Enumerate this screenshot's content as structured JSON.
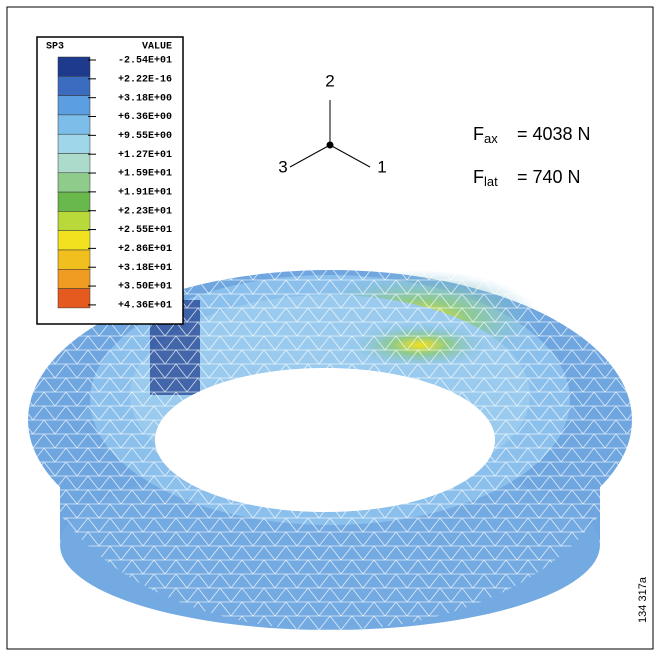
{
  "legend": {
    "header": "SP3",
    "value_header": "VALUE",
    "labels": [
      "-2.54E+01",
      "+2.22E-16",
      "+3.18E+00",
      "+6.36E+00",
      "+9.55E+00",
      "+1.27E+01",
      "+1.59E+01",
      "+1.91E+01",
      "+2.23E+01",
      "+2.55E+01",
      "+2.86E+01",
      "+3.18E+01",
      "+3.50E+01",
      "+4.36E+01"
    ],
    "colors": [
      "#1d3a8c",
      "#3b6cc0",
      "#5b9fe2",
      "#7cbde9",
      "#a0d6ea",
      "#acdacb",
      "#8fcb8a",
      "#69b84b",
      "#b9d93a",
      "#f2e11f",
      "#f2c01e",
      "#f09c22",
      "#e55a1e"
    ]
  },
  "triad": {
    "up": "2",
    "left": "3",
    "right": "1"
  },
  "forces": [
    {
      "symbol": "F",
      "subscript": "ax",
      "value": "= 4038 N"
    },
    {
      "symbol": "F",
      "subscript": "lat",
      "value": "= 740 N"
    }
  ],
  "figure_id": "134 317a"
}
